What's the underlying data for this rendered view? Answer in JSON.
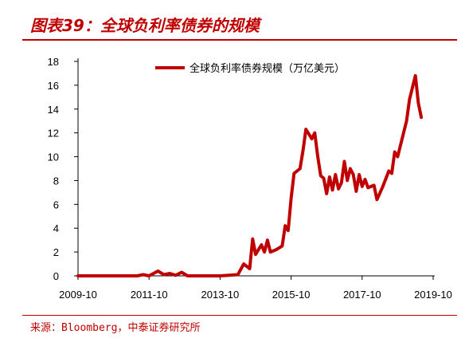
{
  "figure": {
    "title": "图表39：全球负利率债券的规模",
    "source": "来源：Bloomberg，中泰证券研究所"
  },
  "colors": {
    "accent": "#c00000",
    "axis": "#000000"
  },
  "chart_data": {
    "type": "line",
    "title": "",
    "xlabel": "",
    "ylabel": "",
    "x_ticks": [
      "2009-10",
      "2011-10",
      "2013-10",
      "2015-10",
      "2017-10",
      "2019-10"
    ],
    "y_ticks": [
      0,
      2,
      4,
      6,
      8,
      10,
      12,
      14,
      16,
      18
    ],
    "xlim": [
      "2009-10",
      "2019-10"
    ],
    "ylim": [
      0,
      18
    ],
    "grid": false,
    "legend_position": "top",
    "series": [
      {
        "name": "全球负利率债券规模（万亿美元）",
        "color": "#c00000",
        "points": [
          [
            "2009-10",
            0
          ],
          [
            "2011-06",
            0
          ],
          [
            "2011-08",
            0.1
          ],
          [
            "2011-10",
            0
          ],
          [
            "2012-01",
            0.4
          ],
          [
            "2012-03",
            0.1
          ],
          [
            "2012-05",
            0.2
          ],
          [
            "2012-07",
            0.05
          ],
          [
            "2012-09",
            0.3
          ],
          [
            "2012-11",
            0
          ],
          [
            "2013-10",
            0
          ],
          [
            "2014-04",
            0.1
          ],
          [
            "2014-06",
            1.0
          ],
          [
            "2014-08",
            0.6
          ],
          [
            "2014-09",
            3.1
          ],
          [
            "2014-10",
            1.8
          ],
          [
            "2014-12",
            2.6
          ],
          [
            "2015-01",
            2.0
          ],
          [
            "2015-02",
            3.0
          ],
          [
            "2015-03",
            2.0
          ],
          [
            "2015-05",
            2.2
          ],
          [
            "2015-07",
            2.5
          ],
          [
            "2015-08",
            4.2
          ],
          [
            "2015-09",
            3.8
          ],
          [
            "2015-10",
            6.5
          ],
          [
            "2015-11",
            8.6
          ],
          [
            "2016-01",
            9.0
          ],
          [
            "2016-02",
            10.5
          ],
          [
            "2016-03",
            12.3
          ],
          [
            "2016-05",
            11.5
          ],
          [
            "2016-06",
            12.0
          ],
          [
            "2016-07",
            10.0
          ],
          [
            "2016-08",
            8.4
          ],
          [
            "2016-09",
            8.2
          ],
          [
            "2016-10",
            6.9
          ],
          [
            "2016-11",
            8.3
          ],
          [
            "2016-12",
            7.2
          ],
          [
            "2017-01",
            8.5
          ],
          [
            "2017-02",
            7.3
          ],
          [
            "2017-03",
            7.8
          ],
          [
            "2017-04",
            9.6
          ],
          [
            "2017-05",
            8.0
          ],
          [
            "2017-06",
            9.0
          ],
          [
            "2017-07",
            8.5
          ],
          [
            "2017-08",
            7.1
          ],
          [
            "2017-09",
            8.5
          ],
          [
            "2017-10",
            7.5
          ],
          [
            "2017-11",
            8.1
          ],
          [
            "2017-12",
            7.4
          ],
          [
            "2018-02",
            7.6
          ],
          [
            "2018-03",
            6.4
          ],
          [
            "2018-05",
            7.5
          ],
          [
            "2018-07",
            8.8
          ],
          [
            "2018-08",
            8.6
          ],
          [
            "2018-09",
            10.4
          ],
          [
            "2018-10",
            10.0
          ],
          [
            "2019-01",
            13.0
          ],
          [
            "2019-02",
            14.8
          ],
          [
            "2019-04",
            16.8
          ],
          [
            "2019-05",
            14.5
          ],
          [
            "2019-06",
            13.3
          ]
        ]
      }
    ]
  }
}
